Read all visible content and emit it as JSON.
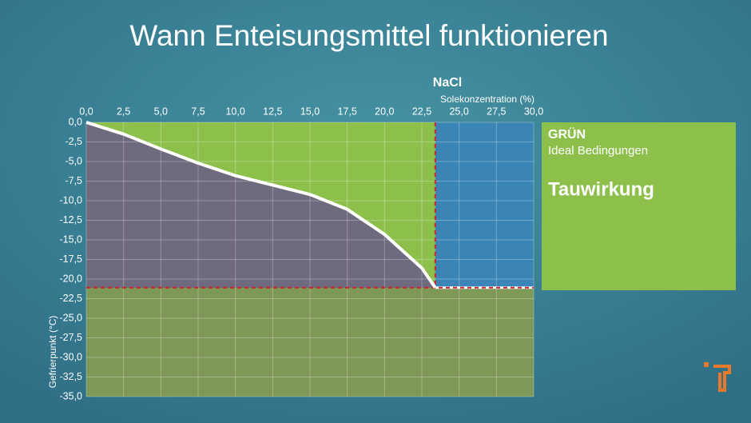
{
  "chart_data": {
    "type": "line",
    "title": "Wann Enteisungsmittel funktionieren",
    "subtitle": "NaCl",
    "x_label": "Solekonzentration (%)",
    "y_label": "Gefrierpunkt (°C)",
    "xlim": [
      0,
      30
    ],
    "ylim": [
      -35,
      0
    ],
    "xticks": [
      {
        "value": 0,
        "label": "0,0"
      },
      {
        "value": 2.5,
        "label": "2,5"
      },
      {
        "value": 5,
        "label": "5,0"
      },
      {
        "value": 7.5,
        "label": "7,5"
      },
      {
        "value": 10,
        "label": "10,0"
      },
      {
        "value": 12.5,
        "label": "12,5"
      },
      {
        "value": 15,
        "label": "15,0"
      },
      {
        "value": 17.5,
        "label": "17,5"
      },
      {
        "value": 20,
        "label": "20,0"
      },
      {
        "value": 22.5,
        "label": "22,5"
      },
      {
        "value": 25,
        "label": "25,0"
      },
      {
        "value": 27.5,
        "label": "27,5"
      },
      {
        "value": 30,
        "label": "30,0"
      }
    ],
    "yticks": [
      {
        "value": 0,
        "label": "0,0"
      },
      {
        "value": -2.5,
        "label": "-2,5"
      },
      {
        "value": -5,
        "label": "-5,0"
      },
      {
        "value": -7.5,
        "label": "-7,5"
      },
      {
        "value": -10,
        "label": "-10,0"
      },
      {
        "value": -12.5,
        "label": "-12,5"
      },
      {
        "value": -15,
        "label": "-15,0"
      },
      {
        "value": -17.5,
        "label": "-17,5"
      },
      {
        "value": -20,
        "label": "-20,0"
      },
      {
        "value": -22.5,
        "label": "-22,5"
      },
      {
        "value": -25,
        "label": "-25,0"
      },
      {
        "value": -27.5,
        "label": "-27,5"
      },
      {
        "value": -30,
        "label": "-30,0"
      },
      {
        "value": -32.5,
        "label": "-32,5"
      },
      {
        "value": -35,
        "label": "-35,0"
      }
    ],
    "grid": true,
    "x": [
      0,
      2.5,
      5,
      7.5,
      10,
      12.5,
      15,
      17.5,
      20,
      22.5,
      23.4
    ],
    "series": [
      {
        "color": "#ffffff",
        "values": [
          0,
          -1.5,
          -3.4,
          -5.2,
          -6.8,
          -8,
          -9.2,
          -11.1,
          -14.3,
          -18.6,
          -21.1
        ]
      }
    ]
  },
  "panel": {
    "label": "GRÜN",
    "subtitle": "Ideal Bedingungen",
    "effect": "Tauwirkung"
  }
}
